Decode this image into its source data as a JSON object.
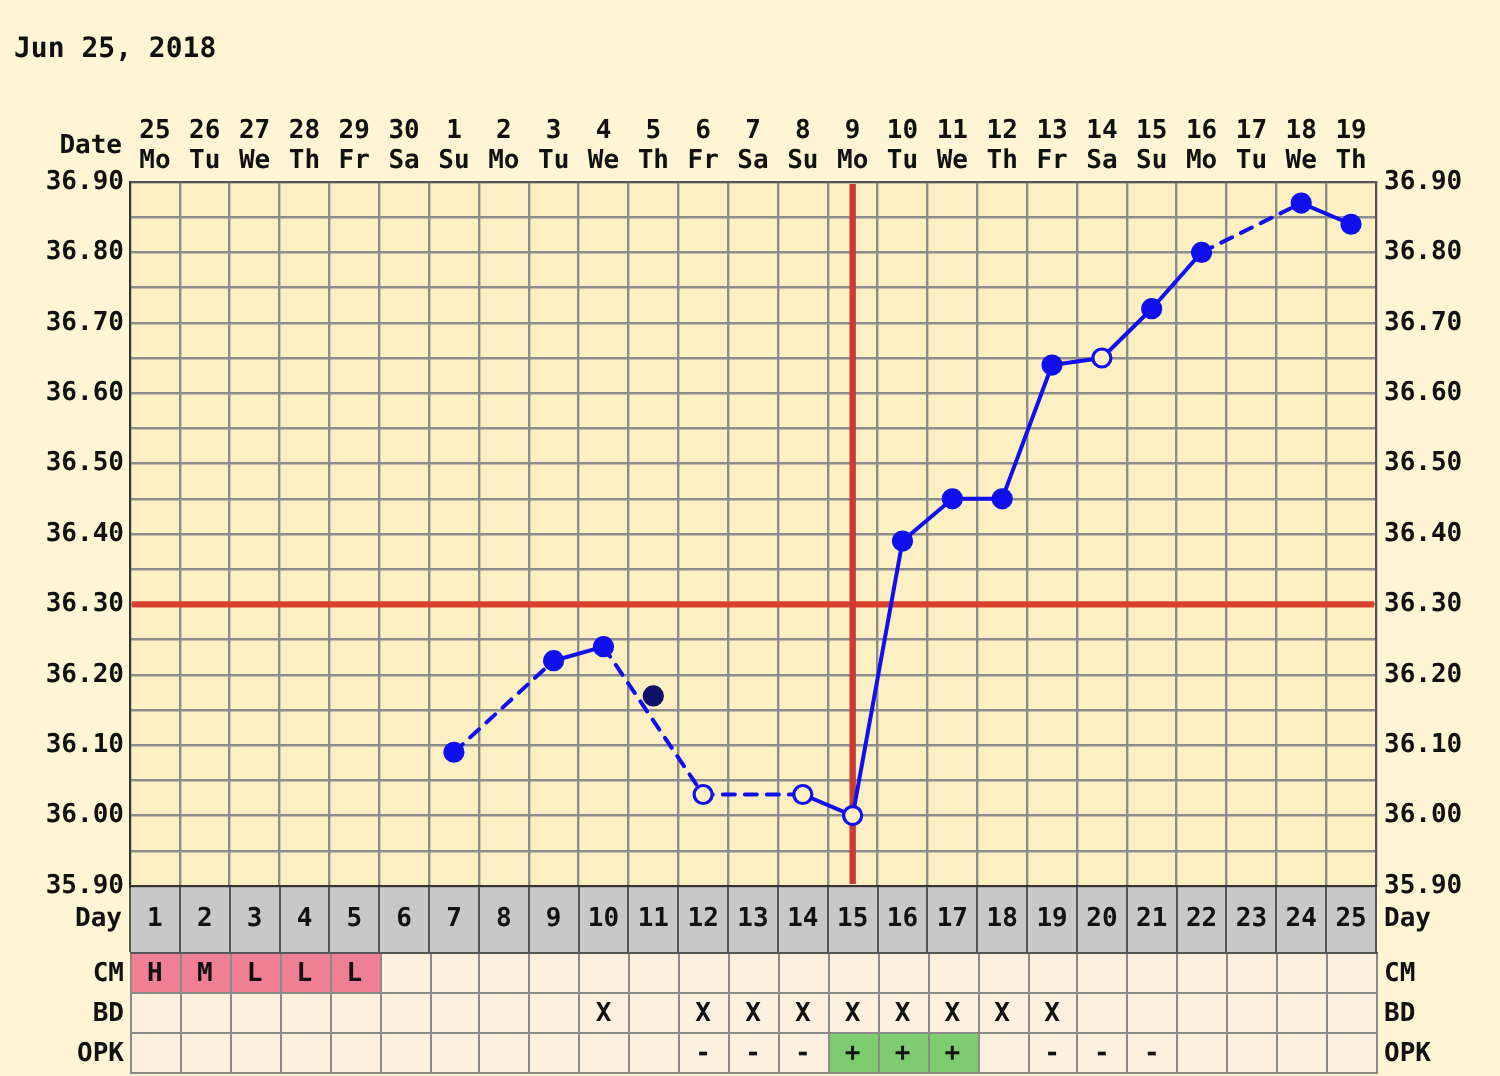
{
  "chart_data": [
    {
      "type": "line",
      "title": "Jun 25, 2018",
      "xlabel": "Date",
      "x2label": "Day",
      "categories": [
        "25 Mo",
        "26 Tu",
        "27 We",
        "28 Th",
        "29 Fr",
        "30 Sa",
        "1 Su",
        "2 Mo",
        "3 Tu",
        "4 We",
        "5 Th",
        "6 Fr",
        "7 Sa",
        "8 Su",
        "9 Mo",
        "10 Tu",
        "11 We",
        "12 Th",
        "13 Fr",
        "14 Sa",
        "15 Su",
        "16 Mo",
        "17 Tu",
        "18 We",
        "19 Th"
      ],
      "series": [
        {
          "type": "line",
          "color": "#1010ee",
          "values": [
            null,
            null,
            null,
            null,
            null,
            null,
            36.09,
            null,
            36.22,
            36.24,
            null,
            36.03,
            null,
            36.03,
            36.0,
            36.39,
            36.45,
            36.45,
            36.64,
            36.65,
            36.72,
            36.8,
            null,
            36.87,
            36.84
          ],
          "colors": [
            null,
            null,
            null,
            null,
            null,
            null,
            "#1010ee",
            null,
            "#1010ee",
            "#1010ee",
            null,
            "#fcf0c2",
            null,
            "#fcf0c2",
            "#fcf0c2",
            "#1010ee",
            "#1010ee",
            "#1010ee",
            "#1010ee",
            "#fcf0c2",
            "#1010ee",
            "#1010ee",
            null,
            "#1010ee",
            "#1010ee"
          ]
        },
        {
          "type": "scatter",
          "color": "#10106a",
          "values": [
            null,
            null,
            null,
            null,
            null,
            null,
            null,
            null,
            null,
            null,
            36.17,
            null,
            null,
            null,
            null,
            null,
            null,
            null,
            null,
            null,
            null,
            null,
            null,
            null,
            null
          ]
        }
      ],
      "ylim": [
        35.9,
        36.9
      ],
      "yticks": [
        {
          "value": 35.9,
          "label": "35.90"
        },
        {
          "value": 35.95,
          "label": null
        },
        {
          "value": 36.0,
          "label": "36.00"
        },
        {
          "value": 36.05,
          "label": null
        },
        {
          "value": 36.1,
          "label": "36.10"
        },
        {
          "value": 36.15,
          "label": null
        },
        {
          "value": 36.2,
          "label": "36.20"
        },
        {
          "value": 36.25,
          "label": null
        },
        {
          "value": 36.3,
          "label": "36.30"
        },
        {
          "value": 36.35,
          "label": null
        },
        {
          "value": 36.4,
          "label": "36.40"
        },
        {
          "value": 36.45,
          "label": null
        },
        {
          "value": 36.5,
          "label": "36.50"
        },
        {
          "value": 36.55,
          "label": null
        },
        {
          "value": 36.6,
          "label": "36.60"
        },
        {
          "value": 36.65,
          "label": null
        },
        {
          "value": 36.7,
          "label": "36.70"
        },
        {
          "value": 36.75,
          "label": null
        },
        {
          "value": 36.8,
          "label": "36.80"
        },
        {
          "value": 36.85,
          "label": null
        },
        {
          "value": 36.9,
          "label": "36.90"
        }
      ],
      "y2lim": [
        35.9,
        36.9
      ],
      "y2ticks": [
        {
          "value": 35.9,
          "label": "35.90"
        },
        {
          "value": 35.95,
          "label": null
        },
        {
          "value": 36.0,
          "label": "36.00"
        },
        {
          "value": 36.05,
          "label": null
        },
        {
          "value": 36.1,
          "label": "36.10"
        },
        {
          "value": 36.15,
          "label": null
        },
        {
          "value": 36.2,
          "label": "36.20"
        },
        {
          "value": 36.25,
          "label": null
        },
        {
          "value": 36.3,
          "label": "36.30"
        },
        {
          "value": 36.35,
          "label": null
        },
        {
          "value": 36.4,
          "label": "36.40"
        },
        {
          "value": 36.45,
          "label": null
        },
        {
          "value": 36.5,
          "label": "36.50"
        },
        {
          "value": 36.55,
          "label": null
        },
        {
          "value": 36.6,
          "label": "36.60"
        },
        {
          "value": 36.65,
          "label": null
        },
        {
          "value": 36.7,
          "label": "36.70"
        },
        {
          "value": 36.75,
          "label": null
        },
        {
          "value": 36.8,
          "label": "36.80"
        },
        {
          "value": 36.85,
          "label": null
        },
        {
          "value": 36.9,
          "label": "36.90"
        }
      ],
      "x2lim": [
        0.5,
        25.5
      ],
      "x2ticks": [
        1,
        2,
        3,
        4,
        5,
        6,
        7,
        8,
        9,
        10,
        11,
        12,
        13,
        14,
        15,
        16,
        17,
        18,
        19,
        20,
        21,
        22,
        23,
        24,
        25
      ],
      "ref_lines": [
        {
          "axis": "y",
          "value": 36.3,
          "color": "#d8402f"
        },
        {
          "axis": "x",
          "value": "9 Mo",
          "color": "#cc3a34"
        }
      ],
      "grid": true,
      "marker": "circle",
      "line_style": "solid"
    },
    {
      "type": "other",
      "categories": [
        null,
        null,
        null,
        null,
        null,
        null,
        null,
        null,
        null,
        null,
        null,
        null,
        null,
        null,
        null,
        null,
        null,
        null,
        null,
        null,
        null,
        null,
        null,
        null,
        null
      ],
      "y_categories": [
        "CM",
        "BD",
        "OPK"
      ],
      "y2_categories": [
        "CM",
        "BD",
        "OPK"
      ],
      "cell_labels": [
        [
          "H",
          "M",
          "L",
          "L",
          "L",
          null,
          null,
          null,
          null,
          null,
          null,
          null,
          null,
          null,
          null,
          null,
          null,
          null,
          null,
          null,
          null,
          null,
          null,
          null,
          null
        ],
        [
          null,
          null,
          null,
          null,
          null,
          null,
          null,
          null,
          null,
          "X",
          null,
          "X",
          "X",
          "X",
          "X",
          "X",
          "X",
          "X",
          "X",
          null,
          null,
          null,
          null,
          null,
          null
        ],
        [
          null,
          null,
          null,
          null,
          null,
          null,
          null,
          null,
          null,
          null,
          null,
          "-",
          "-",
          "-",
          "+",
          "+",
          "+",
          null,
          "-",
          "-",
          "-",
          null,
          null,
          null,
          null
        ]
      ],
      "colors": [
        [
          "#ee7f95",
          "#ee7f95",
          "#ee7f95",
          "#ee7f95",
          "#ee7f95",
          null,
          null,
          null,
          null,
          null,
          null,
          null,
          null,
          null,
          null,
          null,
          null,
          null,
          null,
          null,
          null,
          null,
          null,
          null,
          null
        ],
        [
          null,
          null,
          null,
          null,
          null,
          null,
          null,
          null,
          null,
          null,
          null,
          null,
          null,
          null,
          null,
          null,
          null,
          null,
          null,
          null,
          null,
          null,
          null,
          null,
          null
        ],
        [
          null,
          null,
          null,
          null,
          null,
          null,
          null,
          null,
          null,
          null,
          null,
          null,
          null,
          null,
          "#7dcc6d",
          "#7dcc6d",
          "#7dcc6d",
          null,
          null,
          null,
          null,
          null,
          null,
          null,
          null
        ]
      ]
    }
  ]
}
